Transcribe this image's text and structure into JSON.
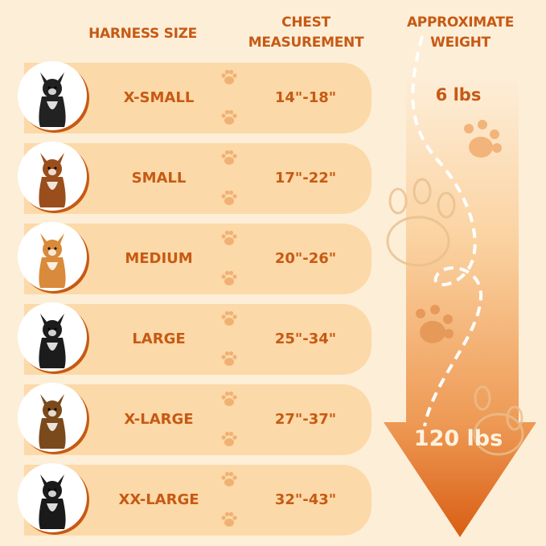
{
  "headers": {
    "size": "HARNESS SIZE",
    "chest": "CHEST MEASUREMENT",
    "weight": "APPROXIMATE WEIGHT"
  },
  "rows": [
    {
      "size": "X-SMALL",
      "chest": "14\"-18\"",
      "dog_color": "#222222"
    },
    {
      "size": "SMALL",
      "chest": "17\"-22\"",
      "dog_color": "#9a4e1c"
    },
    {
      "size": "MEDIUM",
      "chest": "20\"-26\"",
      "dog_color": "#d98a3a"
    },
    {
      "size": "LARGE",
      "chest": "25\"-34\"",
      "dog_color": "#1c1c1c"
    },
    {
      "size": "X-LARGE",
      "chest": "27\"-37\"",
      "dog_color": "#7a4a1c"
    },
    {
      "size": "XX-LARGE",
      "chest": "32\"-43\"",
      "dog_color": "#1a1a1a"
    }
  ],
  "weight": {
    "min": "6 lbs",
    "max": "120 lbs"
  },
  "colors": {
    "accent": "#c65a14",
    "row_bg": "#fcd9a8",
    "page_bg": "#fdeed8",
    "arrow_top": "#fde3c0",
    "arrow_bottom": "#dc6318"
  }
}
